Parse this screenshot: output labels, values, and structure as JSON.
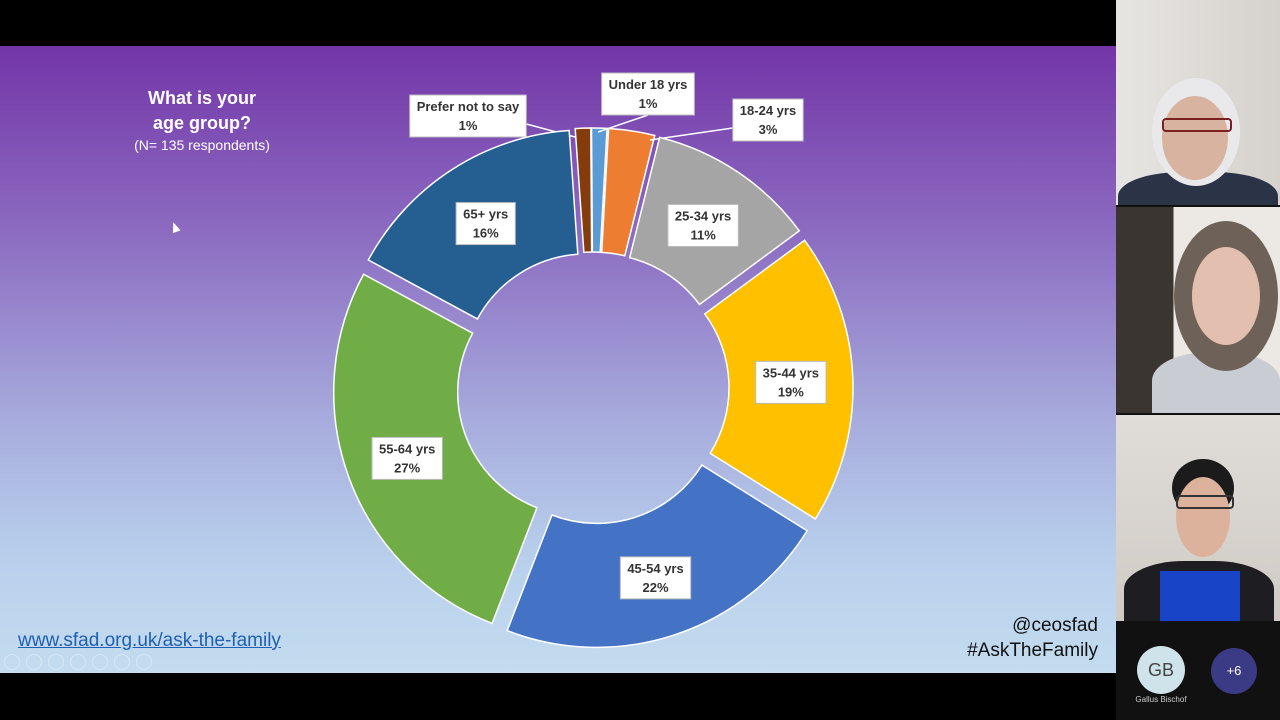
{
  "slide": {
    "title": "What is your\nage group?",
    "subtitle": "(N= 135 respondents)",
    "url": "www.sfad.org.uk/ask-the-family",
    "twitter": "@ceosfad",
    "hashtag": "#AskTheFamily"
  },
  "chart_data": {
    "type": "pie",
    "variant": "donut",
    "categories": [
      "Prefer not to say",
      "Under 18 yrs",
      "18-24 yrs",
      "25-34 yrs",
      "35-44 yrs",
      "45-54 yrs",
      "55-64 yrs",
      "65+ yrs"
    ],
    "values": [
      1,
      1,
      3,
      11,
      19,
      22,
      27,
      16
    ],
    "labels": [
      "1%",
      "1%",
      "3%",
      "11%",
      "19%",
      "22%",
      "27%",
      "16%"
    ],
    "colors": [
      "#843c0c",
      "#5b9bd5",
      "#ed7d31",
      "#a5a5a5",
      "#ffc000",
      "#4472c4",
      "#70ad47",
      "#255e91"
    ],
    "legend": "none"
  },
  "participants": {
    "gb_initials": "GB",
    "gb_name": "Gallus Bischof",
    "more_count": "+6"
  }
}
